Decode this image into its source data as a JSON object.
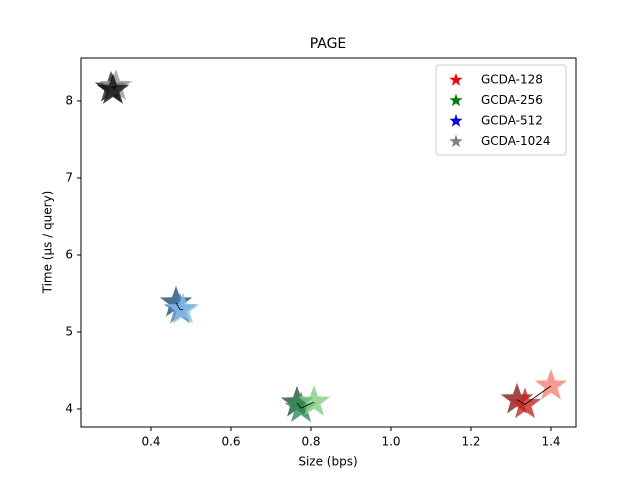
{
  "chart_data": {
    "type": "scatter",
    "title": "PAGE",
    "x_label": "Size (bps)",
    "y_label": "Time (µs / query)",
    "xlim": [
      0.225,
      1.4625
    ],
    "ylim": [
      3.766,
      8.558
    ],
    "xticks": [
      0.4,
      0.6,
      0.8,
      {
        "value": 1,
        "label": "1.0"
      },
      1.2,
      1.4
    ],
    "yticks": [
      4,
      5,
      6,
      7,
      8
    ],
    "legend": "upper right",
    "marker": "star",
    "line_color": "#000000",
    "series": [
      {
        "name": "GCDA-128",
        "color": "#ff0000",
        "x": [
          1.315,
          1.335,
          1.4
        ],
        "values": [
          4.12,
          4.06,
          4.3
        ],
        "point_colors": [
          "#8b1a1a",
          "#cd2626",
          "#fa8072"
        ]
      },
      {
        "name": "GCDA-256",
        "color": "#008000",
        "x": [
          0.765,
          0.775,
          0.8075
        ],
        "values": [
          4.08,
          4.01,
          4.09
        ],
        "point_colors": [
          "#1e5a2e",
          "#2e8b57",
          "#7fcf7f"
        ]
      },
      {
        "name": "GCDA-512",
        "color": "#0000ff",
        "x": [
          0.4625,
          0.4725,
          0.48
        ],
        "values": [
          5.38,
          5.29,
          5.29
        ],
        "point_colors": [
          "#1f4e79",
          "#4682b4",
          "#87bde8"
        ]
      },
      {
        "name": "GCDA-1024",
        "color": "#808080",
        "x": [
          0.3,
          0.3125,
          0.305
        ],
        "values": [
          8.17,
          8.19,
          8.14
        ],
        "point_colors": [
          "#222222",
          "#999999",
          "#111111"
        ]
      }
    ]
  }
}
